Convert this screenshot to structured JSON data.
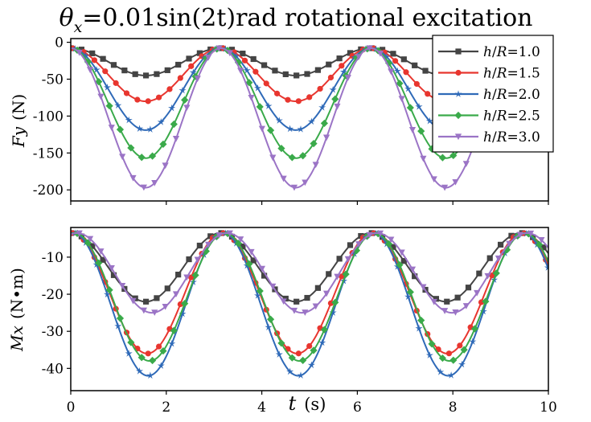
{
  "chart_data": [
    {
      "type": "line",
      "title_parts": {
        "theta": "θ",
        "sub": "x",
        "rest": "=0.01sin(2t)rad rotational excitation"
      },
      "ylabel": "Fy (N)",
      "ylabel_parts": {
        "var": "Fy",
        "unit": "(N)"
      },
      "xlim": [
        0,
        10
      ],
      "ylim": [
        -215,
        5
      ],
      "yticks": [
        0,
        -50,
        -100,
        -150,
        -200
      ],
      "ytick_labels": [
        "0",
        "-50",
        "-100",
        "-150",
        "-200"
      ],
      "grid": false,
      "legend_position": "top-right",
      "base_value": -8,
      "series": [
        {
          "name": "h/R=1.0",
          "name_parts": {
            "a": "h",
            "b": "/",
            "c": "R",
            "d": "=1.0"
          },
          "color": "#444444",
          "marker": "square",
          "amplitude": -37
        },
        {
          "name": "h/R=1.5",
          "name_parts": {
            "a": "h",
            "b": "/",
            "c": "R",
            "d": "=1.5"
          },
          "color": "#e8362f",
          "marker": "circle",
          "amplitude": -72
        },
        {
          "name": "h/R=2.0",
          "name_parts": {
            "a": "h",
            "b": "/",
            "c": "R",
            "d": "=2.0"
          },
          "color": "#2f6ab8",
          "marker": "star",
          "amplitude": -111
        },
        {
          "name": "h/R=2.5",
          "name_parts": {
            "a": "h",
            "b": "/",
            "c": "R",
            "d": "=2.5"
          },
          "color": "#3aaa4a",
          "marker": "diamond",
          "amplitude": -149
        },
        {
          "name": "h/R=3.0",
          "name_parts": {
            "a": "h",
            "b": "/",
            "c": "R",
            "d": "=3.0"
          },
          "color": "#9b74c6",
          "marker": "triangle-down",
          "amplitude": -189
        }
      ]
    },
    {
      "type": "line",
      "xlabel": "t (s)",
      "xlabel_parts": {
        "var": "t",
        "unit": "(s)"
      },
      "ylabel": "Mx (N•m)",
      "ylabel_parts": {
        "var": "Mx",
        "unit": "(N•m)"
      },
      "xlim": [
        0,
        10
      ],
      "ylim": [
        -46,
        -2
      ],
      "xticks": [
        0,
        2,
        4,
        6,
        8,
        10
      ],
      "xtick_labels": [
        "0",
        "2",
        "4",
        "6",
        "8",
        "10"
      ],
      "yticks": [
        -10,
        -20,
        -30,
        -40
      ],
      "ytick_labels": [
        "-10",
        "-20",
        "-30",
        "-40"
      ],
      "grid": false,
      "base_value": -3.5,
      "series": [
        {
          "name": "h/R=1.0",
          "color": "#444444",
          "marker": "square",
          "amplitude": -18.5,
          "phase_shift": 0.0
        },
        {
          "name": "h/R=1.5",
          "color": "#e8362f",
          "marker": "circle",
          "amplitude": -32.5,
          "phase_shift": 0.03
        },
        {
          "name": "h/R=2.0",
          "color": "#2f6ab8",
          "marker": "star",
          "amplitude": -38.5,
          "phase_shift": 0.05
        },
        {
          "name": "h/R=2.5",
          "color": "#3aaa4a",
          "marker": "diamond",
          "amplitude": -34.5,
          "phase_shift": 0.08
        },
        {
          "name": "h/R=3.0",
          "color": "#9b74c6",
          "marker": "triangle-down",
          "amplitude": -21.5,
          "phase_shift": 0.13
        }
      ]
    }
  ]
}
